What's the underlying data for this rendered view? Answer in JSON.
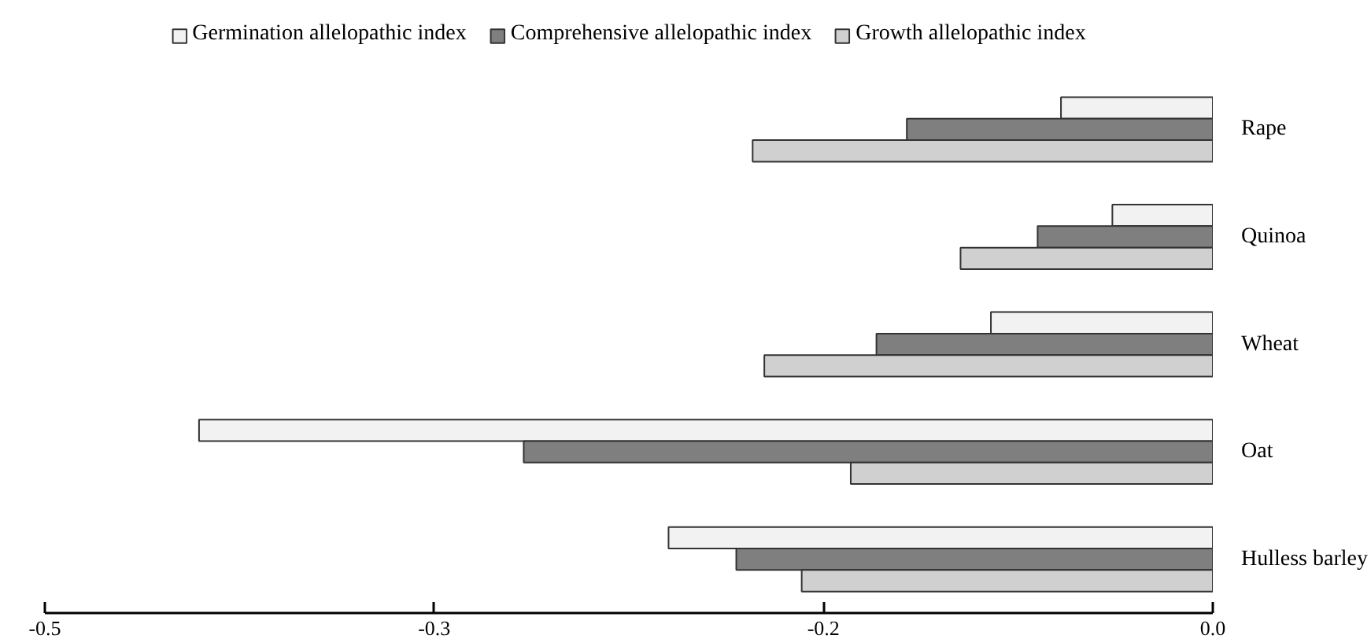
{
  "chart_data": {
    "type": "bar",
    "orientation": "horizontal",
    "categories": [
      "Rape",
      "Quinoa",
      "Wheat",
      "Oat",
      "Hulless barley"
    ],
    "series": [
      {
        "name": "Germination allelopathic index",
        "color": "#f2f2f2",
        "values": [
          -0.065,
          -0.043,
          -0.095,
          -0.434,
          -0.233
        ]
      },
      {
        "name": "Comprehensive allelopathic index",
        "color": "#7f7f7f",
        "values": [
          -0.131,
          -0.075,
          -0.144,
          -0.295,
          -0.204
        ]
      },
      {
        "name": "Growth allelopathic index",
        "color": "#d0d0d0",
        "values": [
          -0.197,
          -0.108,
          -0.192,
          -0.155,
          -0.176
        ]
      }
    ],
    "xlim": [
      -0.5,
      0
    ],
    "xticks": [
      {
        "value": -0.5,
        "label": "-0.5"
      },
      {
        "value": -0.3333,
        "label": "-0.3"
      },
      {
        "value": -0.1667,
        "label": "-0.2"
      },
      {
        "value": 0,
        "label": "0.0"
      }
    ],
    "legend": "top",
    "grid": false
  }
}
